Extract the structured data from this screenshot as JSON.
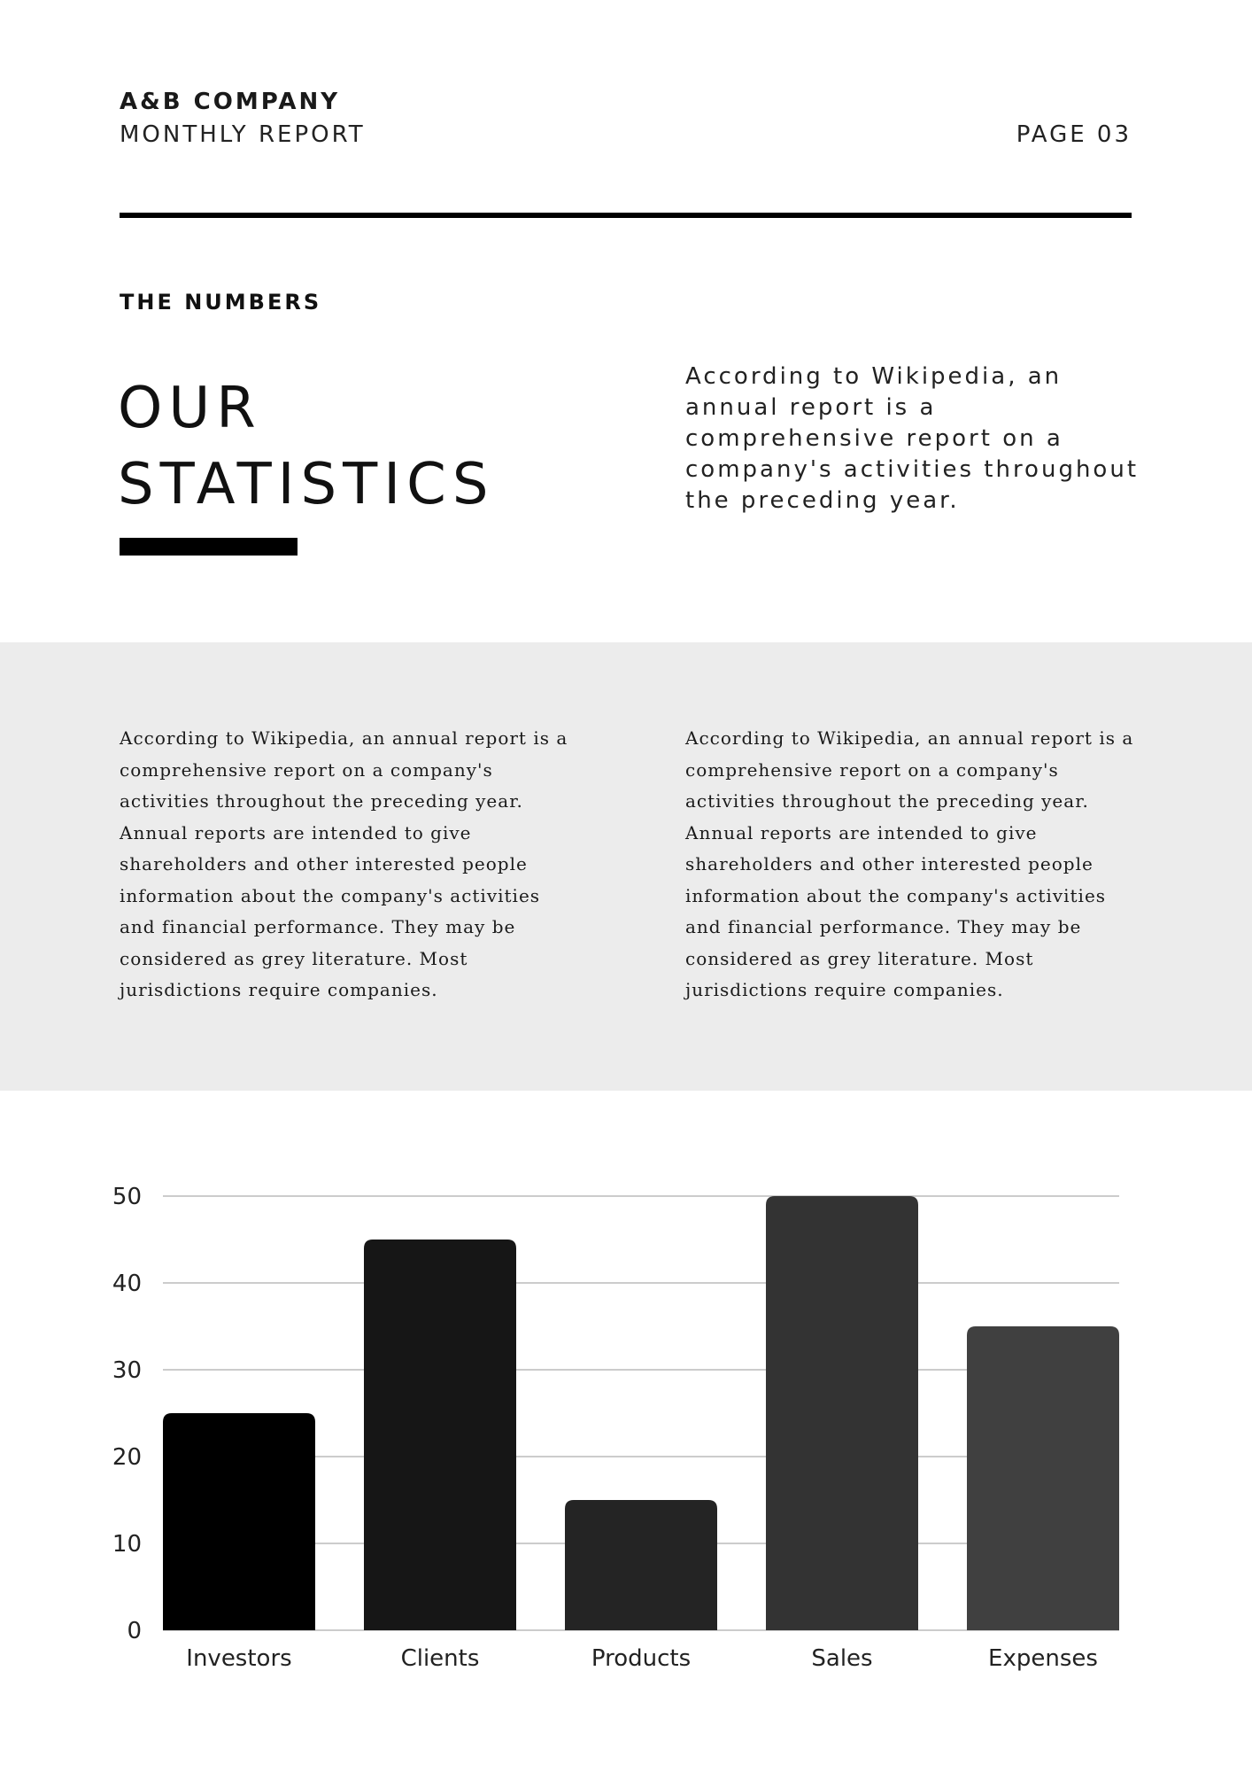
{
  "header": {
    "company": "A&B COMPANY",
    "report": "MONTHLY REPORT",
    "page": "PAGE 03"
  },
  "section": {
    "label": "THE NUMBERS",
    "title_line1": "OUR",
    "title_line2": "STATISTICS",
    "intro": "According to Wikipedia, an annual report is a comprehensive report on a company's activities throughout the preceding year."
  },
  "columns": {
    "left": "According to Wikipedia, an annual report is a comprehensive report on a company's activities throughout the preceding year. Annual reports are intended to give shareholders and other interested people information about the company's activities and financial performance. They may be considered as grey literature. Most jurisdictions require companies.",
    "right": "According to Wikipedia, an annual report is a comprehensive report on a company's activities throughout the preceding year. Annual reports are intended to give shareholders and other interested people information about the company's activities and financial performance. They may be considered as grey literature. Most jurisdictions require companies."
  },
  "colors": {
    "rule": "#000000",
    "band": "#ececec",
    "grid": "#cccccc",
    "bars": [
      "#000000",
      "#161616",
      "#242424",
      "#333333",
      "#404040"
    ]
  },
  "chart_data": {
    "type": "bar",
    "categories": [
      "Investors",
      "Clients",
      "Products",
      "Sales",
      "Expenses"
    ],
    "values": [
      25,
      45,
      15,
      50,
      35
    ],
    "ylim": [
      0,
      50
    ],
    "yticks": [
      0,
      10,
      20,
      30,
      40,
      50
    ],
    "grid": true,
    "title": "",
    "xlabel": "",
    "ylabel": ""
  }
}
